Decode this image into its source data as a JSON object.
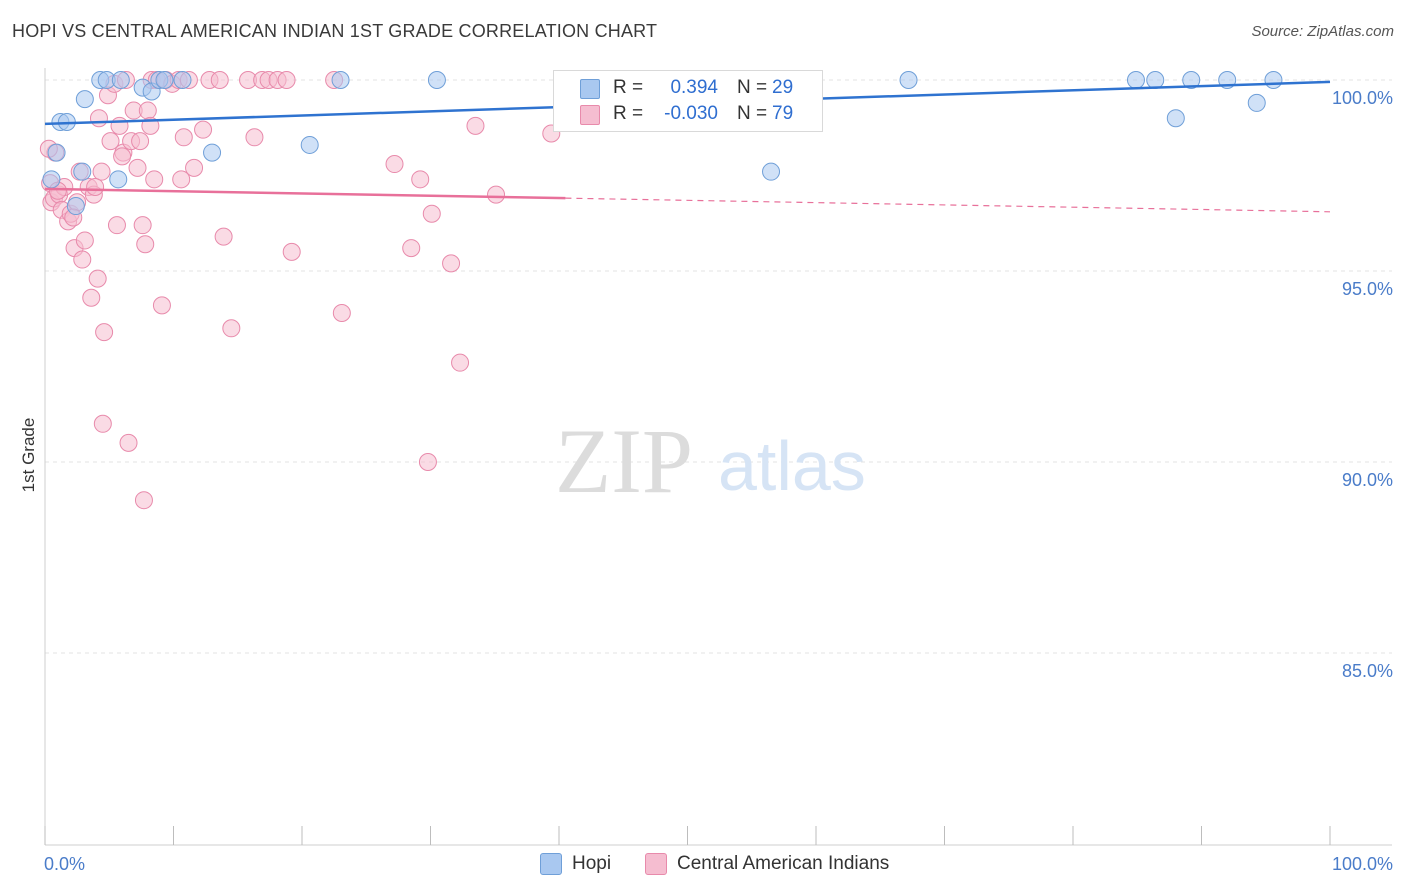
{
  "header": {
    "title": "HOPI VS CENTRAL AMERICAN INDIAN 1ST GRADE CORRELATION CHART",
    "source": "Source: ZipAtlas.com"
  },
  "watermark": {
    "zip": "ZIP",
    "atlas": "atlas"
  },
  "legend": {
    "hopi": {
      "r_label": "R =",
      "r_value": "0.394",
      "n_label": "N =",
      "n_value": "29"
    },
    "cai": {
      "r_label": "R =",
      "r_value": "-0.030",
      "n_label": "N =",
      "n_value": "79"
    }
  },
  "bottom_legend": {
    "hopi": "Hopi",
    "cai": "Central American Indians"
  },
  "colors": {
    "hopi_fill": "#a9c8f0",
    "hopi_stroke": "#6f9fd8",
    "hopi_line": "#2f73d0",
    "cai_fill": "#f5bdd0",
    "cai_stroke": "#e88aab",
    "cai_line": "#e8709a",
    "axis_label": "#4a7cc9",
    "grid": "#e3e3e3"
  },
  "chart_data": {
    "type": "scatter",
    "title": "HOPI VS CENTRAL AMERICAN INDIAN 1ST GRADE CORRELATION CHART",
    "xlabel": "",
    "ylabel": "1st Grade",
    "xlim": [
      0,
      100
    ],
    "ylim": [
      80,
      100.5
    ],
    "x_tick_labels": [
      "0.0%",
      "100.0%"
    ],
    "y_ticks": [
      100,
      95,
      90,
      85
    ],
    "y_tick_labels": [
      "100.0%",
      "95.0%",
      "90.0%",
      "85.0%"
    ],
    "grid": true,
    "series": [
      {
        "name": "Hopi",
        "r": 0.394,
        "n": 29,
        "trend": {
          "x": [
            0,
            100
          ],
          "y": [
            98.85,
            99.95
          ],
          "dashed_from": null
        },
        "points": [
          {
            "x": 0.5,
            "y": 97.4
          },
          {
            "x": 0.9,
            "y": 98.1
          },
          {
            "x": 1.2,
            "y": 98.9
          },
          {
            "x": 1.7,
            "y": 98.9
          },
          {
            "x": 2.4,
            "y": 96.7
          },
          {
            "x": 2.9,
            "y": 97.6
          },
          {
            "x": 3.1,
            "y": 99.5
          },
          {
            "x": 4.3,
            "y": 100.0
          },
          {
            "x": 4.8,
            "y": 100.0
          },
          {
            "x": 5.7,
            "y": 97.4
          },
          {
            "x": 5.9,
            "y": 100.0
          },
          {
            "x": 7.6,
            "y": 99.8
          },
          {
            "x": 8.3,
            "y": 99.7
          },
          {
            "x": 8.9,
            "y": 100.0
          },
          {
            "x": 9.3,
            "y": 100.0
          },
          {
            "x": 10.7,
            "y": 100.0
          },
          {
            "x": 13.0,
            "y": 98.1
          },
          {
            "x": 20.6,
            "y": 98.3
          },
          {
            "x": 23.0,
            "y": 100.0
          },
          {
            "x": 30.5,
            "y": 100.0
          },
          {
            "x": 56.5,
            "y": 97.6
          },
          {
            "x": 67.2,
            "y": 100.0
          },
          {
            "x": 84.9,
            "y": 100.0
          },
          {
            "x": 86.4,
            "y": 100.0
          },
          {
            "x": 88.0,
            "y": 99.0
          },
          {
            "x": 89.2,
            "y": 100.0
          },
          {
            "x": 92.0,
            "y": 100.0
          },
          {
            "x": 94.3,
            "y": 99.4
          },
          {
            "x": 95.6,
            "y": 100.0
          }
        ]
      },
      {
        "name": "Central American Indians",
        "r": -0.03,
        "n": 79,
        "trend": {
          "x": [
            0,
            100
          ],
          "y": [
            97.15,
            96.55
          ],
          "dashed_from": 40.5
        },
        "points": [
          {
            "x": 0.4,
            "y": 97.3
          },
          {
            "x": 0.5,
            "y": 96.8
          },
          {
            "x": 0.7,
            "y": 96.9
          },
          {
            "x": 0.8,
            "y": 98.1
          },
          {
            "x": 1.1,
            "y": 97.0
          },
          {
            "x": 1.3,
            "y": 96.6
          },
          {
            "x": 1.5,
            "y": 97.2
          },
          {
            "x": 1.8,
            "y": 96.3
          },
          {
            "x": 2.0,
            "y": 96.5
          },
          {
            "x": 2.3,
            "y": 95.6
          },
          {
            "x": 2.5,
            "y": 96.8
          },
          {
            "x": 2.7,
            "y": 97.6
          },
          {
            "x": 2.9,
            "y": 95.3
          },
          {
            "x": 3.1,
            "y": 95.8
          },
          {
            "x": 3.4,
            "y": 97.2
          },
          {
            "x": 3.6,
            "y": 94.3
          },
          {
            "x": 3.8,
            "y": 97.0
          },
          {
            "x": 4.1,
            "y": 94.8
          },
          {
            "x": 4.2,
            "y": 99.0
          },
          {
            "x": 4.4,
            "y": 97.6
          },
          {
            "x": 4.5,
            "y": 91.0
          },
          {
            "x": 4.6,
            "y": 93.4
          },
          {
            "x": 4.9,
            "y": 99.6
          },
          {
            "x": 5.1,
            "y": 98.4
          },
          {
            "x": 5.4,
            "y": 99.9
          },
          {
            "x": 5.6,
            "y": 96.2
          },
          {
            "x": 5.8,
            "y": 98.8
          },
          {
            "x": 6.1,
            "y": 98.1
          },
          {
            "x": 6.3,
            "y": 100.0
          },
          {
            "x": 6.5,
            "y": 90.5
          },
          {
            "x": 6.7,
            "y": 98.4
          },
          {
            "x": 6.9,
            "y": 99.2
          },
          {
            "x": 7.2,
            "y": 97.7
          },
          {
            "x": 7.4,
            "y": 98.4
          },
          {
            "x": 7.6,
            "y": 96.2
          },
          {
            "x": 7.7,
            "y": 89.0
          },
          {
            "x": 7.8,
            "y": 95.7
          },
          {
            "x": 8.0,
            "y": 99.2
          },
          {
            "x": 8.2,
            "y": 98.8
          },
          {
            "x": 8.3,
            "y": 100.0
          },
          {
            "x": 8.5,
            "y": 97.4
          },
          {
            "x": 8.7,
            "y": 100.0
          },
          {
            "x": 9.1,
            "y": 94.1
          },
          {
            "x": 9.4,
            "y": 100.0
          },
          {
            "x": 9.9,
            "y": 99.9
          },
          {
            "x": 10.4,
            "y": 100.0
          },
          {
            "x": 10.6,
            "y": 97.4
          },
          {
            "x": 10.8,
            "y": 98.5
          },
          {
            "x": 11.2,
            "y": 100.0
          },
          {
            "x": 11.6,
            "y": 97.7
          },
          {
            "x": 12.3,
            "y": 98.7
          },
          {
            "x": 12.8,
            "y": 100.0
          },
          {
            "x": 13.6,
            "y": 100.0
          },
          {
            "x": 13.9,
            "y": 95.9
          },
          {
            "x": 14.5,
            "y": 93.5
          },
          {
            "x": 15.8,
            "y": 100.0
          },
          {
            "x": 16.3,
            "y": 98.5
          },
          {
            "x": 16.9,
            "y": 100.0
          },
          {
            "x": 17.4,
            "y": 100.0
          },
          {
            "x": 18.1,
            "y": 100.0
          },
          {
            "x": 18.8,
            "y": 100.0
          },
          {
            "x": 19.2,
            "y": 95.5
          },
          {
            "x": 22.5,
            "y": 100.0
          },
          {
            "x": 23.1,
            "y": 93.9
          },
          {
            "x": 27.2,
            "y": 97.8
          },
          {
            "x": 28.5,
            "y": 95.6
          },
          {
            "x": 29.2,
            "y": 97.4
          },
          {
            "x": 29.8,
            "y": 90.0
          },
          {
            "x": 30.1,
            "y": 96.5
          },
          {
            "x": 31.6,
            "y": 95.2
          },
          {
            "x": 32.3,
            "y": 92.6
          },
          {
            "x": 33.5,
            "y": 98.8
          },
          {
            "x": 35.1,
            "y": 97.0
          },
          {
            "x": 39.4,
            "y": 98.6
          },
          {
            "x": 0.3,
            "y": 98.2
          },
          {
            "x": 1.0,
            "y": 97.1
          },
          {
            "x": 2.2,
            "y": 96.4
          },
          {
            "x": 3.9,
            "y": 97.2
          },
          {
            "x": 6.0,
            "y": 98.0
          }
        ]
      }
    ]
  }
}
